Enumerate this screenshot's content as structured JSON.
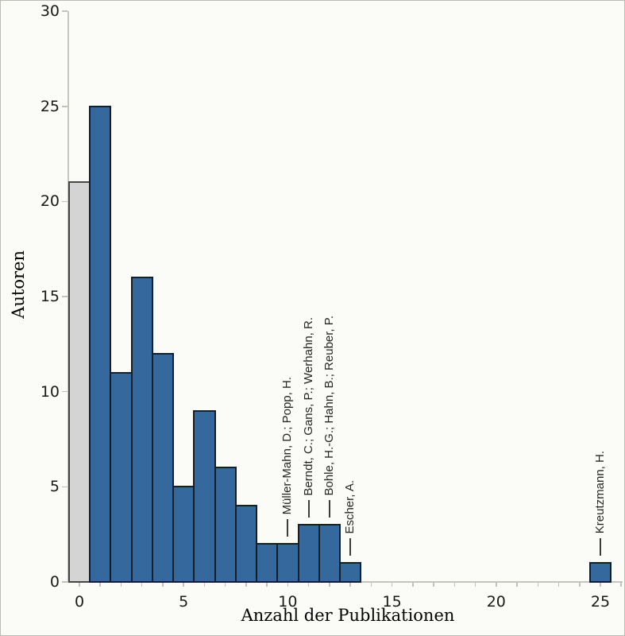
{
  "figure": {
    "xlabel": "Anzahl der Publikationen",
    "ylabel": "Autoren"
  },
  "chart_data": {
    "type": "bar",
    "title": "",
    "xlabel": "Anzahl der Publikationen",
    "ylabel": "Autoren",
    "xlim": [
      -0.7,
      26.2
    ],
    "ylim": [
      0,
      30
    ],
    "grid": false,
    "legend": "none",
    "x_major_ticks": [
      0,
      5,
      10,
      15,
      20,
      25
    ],
    "x_minor_tick_step": 1,
    "y_major_ticks": [
      0,
      5,
      10,
      15,
      20,
      25,
      30
    ],
    "bars": [
      {
        "x": 0,
        "value": 21,
        "style": "gray"
      },
      {
        "x": 1,
        "value": 25,
        "style": "blue"
      },
      {
        "x": 2,
        "value": 11,
        "style": "blue"
      },
      {
        "x": 3,
        "value": 16,
        "style": "blue"
      },
      {
        "x": 4,
        "value": 12,
        "style": "blue"
      },
      {
        "x": 5,
        "value": 5,
        "style": "blue"
      },
      {
        "x": 6,
        "value": 9,
        "style": "blue"
      },
      {
        "x": 7,
        "value": 6,
        "style": "blue"
      },
      {
        "x": 8,
        "value": 4,
        "style": "blue"
      },
      {
        "x": 9,
        "value": 2,
        "style": "blue"
      },
      {
        "x": 10,
        "value": 2,
        "style": "blue"
      },
      {
        "x": 11,
        "value": 3,
        "style": "blue"
      },
      {
        "x": 12,
        "value": 3,
        "style": "blue"
      },
      {
        "x": 13,
        "value": 1,
        "style": "blue"
      },
      {
        "x": 25,
        "value": 1,
        "style": "blue"
      }
    ],
    "annotations": [
      {
        "x": 10,
        "bar_value": 2,
        "label": "Müller-Mahn, D.; Popp, H."
      },
      {
        "x": 11,
        "bar_value": 3,
        "label": "Berndt, C.; Gans, P.; Werhahn, R."
      },
      {
        "x": 12,
        "bar_value": 3,
        "label": "Bohle, H.-G.; Hahn, B.; Reuber, P."
      },
      {
        "x": 13,
        "bar_value": 1,
        "label": "Escher, A."
      },
      {
        "x": 25,
        "bar_value": 1,
        "label": "Kreutzmann, H."
      }
    ],
    "colors": {
      "blue_fill": "#35689d",
      "blue_stroke": "#131f29",
      "gray_fill": "#d4d4d4",
      "gray_stroke": "#474747",
      "axis": "#c6c6c0",
      "tick": "#c2c2bc",
      "tick_label": "#191919",
      "annotation_text": "#262626",
      "annotation_line": "#3c3c3c",
      "background": "#fbfbf8"
    }
  }
}
